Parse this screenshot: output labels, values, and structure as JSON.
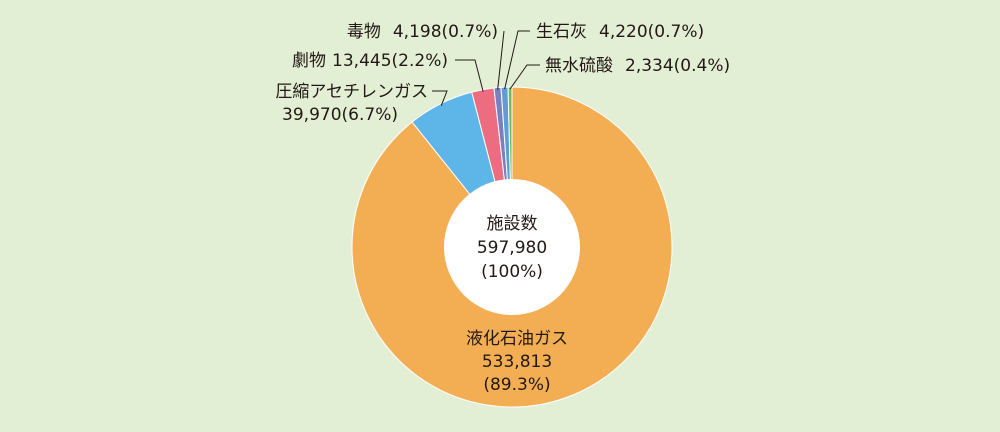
{
  "chart_data": {
    "type": "pie",
    "style": "donut",
    "center": {
      "title": "施設数",
      "total": "597,980",
      "pct": "(100%)"
    },
    "slices": [
      {
        "name": "液化石油ガス",
        "value": 533813,
        "value_text": "533,813",
        "pct_text": "(89.3%)",
        "color": "#f3ae54"
      },
      {
        "name": "圧縮アセチレンガス",
        "value": 39970,
        "value_text": "39,970",
        "pct_text": "(6.7%)",
        "color": "#5db5e8"
      },
      {
        "name": "劇物",
        "value": 13445,
        "value_text": "13,445",
        "pct_text": "(2.2%)",
        "color": "#ec6d80"
      },
      {
        "name": "毒物",
        "value": 4198,
        "value_text": "4,198",
        "pct_text": "(0.7%)",
        "color": "#7a7fbf"
      },
      {
        "name": "生石灰",
        "value": 4220,
        "value_text": "4,220",
        "pct_text": "(0.7%)",
        "color": "#5f9ed5"
      },
      {
        "name": "無水硫酸",
        "value": 2334,
        "value_text": "2,334",
        "pct_text": "(0.4%)",
        "color": "#6dbb5a"
      }
    ]
  }
}
